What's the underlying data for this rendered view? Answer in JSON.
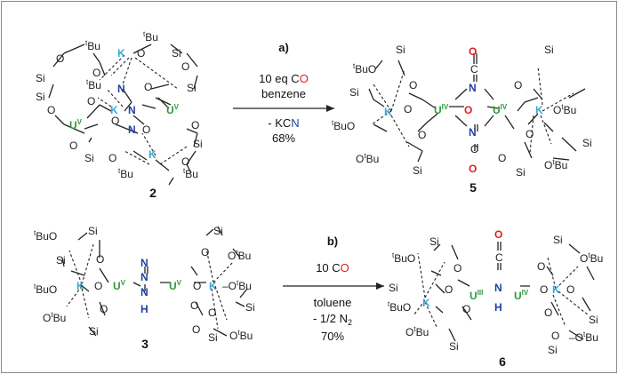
{
  "colors": {
    "uranium": "#2e9a3a",
    "potassium": "#3aa7d6",
    "nitrogen": "#1f3fa3",
    "oxygen_red": "#e02020",
    "bond": "#222222",
    "frame": "#8a8a8a"
  },
  "atoms": {
    "U": "U",
    "K": "K",
    "N": "N",
    "O": "O",
    "C": "C",
    "H": "H",
    "Si": "Si",
    "tBu_sup": "t",
    "tBu_base": "Bu",
    "ox_V": "V",
    "ox_IV": "IV",
    "ox_III": "III"
  },
  "reaction_a": {
    "label": "a)",
    "reagent_prefix": "10 eq C",
    "reagent_O": "O",
    "solvent": "benzene",
    "byproduct_prefix": "- KC",
    "byproduct_N": "N",
    "yield": "68%"
  },
  "reaction_b": {
    "label": "b)",
    "reagent_prefix": "10 C",
    "reagent_O": "O",
    "solvent": "toluene",
    "byproduct": "- 1/2 N",
    "byproduct_sub": "2",
    "yield": "70%"
  },
  "compounds": {
    "c2": "2",
    "c5": "5",
    "c3": "3",
    "c6": "6"
  }
}
